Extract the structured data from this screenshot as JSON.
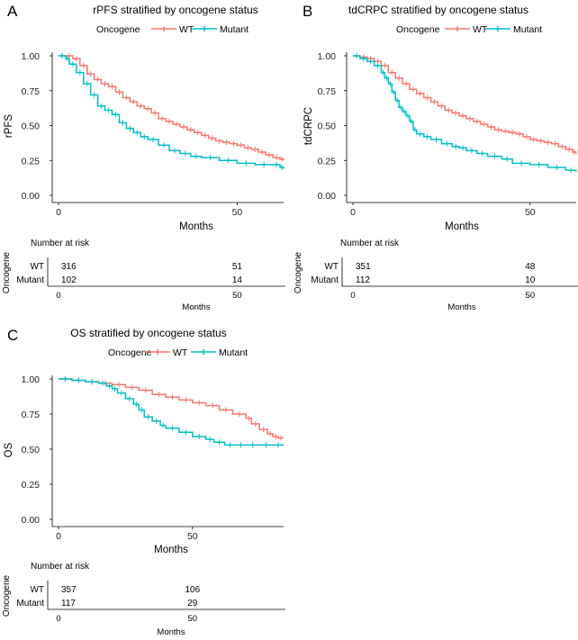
{
  "colors": {
    "wt": "#F8766D",
    "mutant": "#00BFC4"
  },
  "legend_title": "Oncogene",
  "risk_table_title": "Number at risk",
  "risk_ylabel": "Oncogene",
  "chart_data": [
    {
      "type": "line",
      "letter": "A",
      "title": "rPFS stratified by oncogene status",
      "xlabel": "Months",
      "ylabel": "rPFS",
      "xlim": [
        0,
        63
      ],
      "ylim": [
        0,
        1
      ],
      "xticks": [
        0,
        50
      ],
      "yticks": [
        "0.00",
        "0.25",
        "0.50",
        "0.75",
        "1.00"
      ],
      "series": [
        {
          "name": "WT",
          "x": [
            0,
            2,
            4,
            6,
            8,
            10,
            12,
            14,
            16,
            18,
            20,
            22,
            24,
            26,
            28,
            30,
            32,
            34,
            36,
            38,
            40,
            42,
            44,
            46,
            48,
            50,
            52,
            54,
            56,
            58,
            60,
            62,
            63
          ],
          "y": [
            1.0,
            1.0,
            0.98,
            0.93,
            0.87,
            0.83,
            0.8,
            0.78,
            0.74,
            0.7,
            0.67,
            0.64,
            0.62,
            0.59,
            0.55,
            0.53,
            0.51,
            0.49,
            0.47,
            0.45,
            0.43,
            0.41,
            0.39,
            0.38,
            0.37,
            0.36,
            0.34,
            0.33,
            0.31,
            0.29,
            0.27,
            0.26,
            0.25
          ]
        },
        {
          "name": "Mutant",
          "x": [
            0,
            2,
            3,
            5,
            7,
            9,
            11,
            13,
            15,
            17,
            19,
            21,
            23,
            25,
            28,
            31,
            34,
            37,
            40,
            45,
            50,
            55,
            60,
            62,
            63
          ],
          "y": [
            1.0,
            0.98,
            0.94,
            0.88,
            0.8,
            0.72,
            0.64,
            0.61,
            0.58,
            0.52,
            0.48,
            0.45,
            0.42,
            0.4,
            0.36,
            0.32,
            0.3,
            0.28,
            0.27,
            0.25,
            0.23,
            0.22,
            0.22,
            0.2,
            0.19
          ]
        }
      ],
      "risk_table": {
        "times": [
          0,
          50
        ],
        "rows": [
          {
            "label": "WT",
            "counts": [
              316,
              51
            ]
          },
          {
            "label": "Mutant",
            "counts": [
              102,
              14
            ]
          }
        ]
      }
    },
    {
      "type": "line",
      "letter": "B",
      "title": "tdCRPC stratified by oncogene status",
      "xlabel": "Months",
      "ylabel": "tdCRPC",
      "xlim": [
        0,
        63
      ],
      "ylim": [
        0,
        1
      ],
      "xticks": [
        0,
        50
      ],
      "yticks": [
        "0.00",
        "0.25",
        "0.50",
        "0.75",
        "1.00"
      ],
      "series": [
        {
          "name": "WT",
          "x": [
            0,
            2,
            4,
            6,
            8,
            10,
            12,
            14,
            16,
            18,
            20,
            22,
            24,
            26,
            28,
            30,
            32,
            34,
            36,
            38,
            40,
            42,
            44,
            46,
            48,
            50,
            52,
            54,
            56,
            58,
            60,
            62,
            63
          ],
          "y": [
            1.0,
            0.99,
            0.98,
            0.96,
            0.93,
            0.88,
            0.84,
            0.8,
            0.76,
            0.73,
            0.7,
            0.67,
            0.64,
            0.61,
            0.59,
            0.57,
            0.55,
            0.53,
            0.51,
            0.49,
            0.47,
            0.46,
            0.45,
            0.44,
            0.42,
            0.4,
            0.39,
            0.38,
            0.37,
            0.35,
            0.33,
            0.31,
            0.3
          ]
        },
        {
          "name": "Mutant",
          "x": [
            0,
            2,
            4,
            6,
            8,
            9,
            10,
            11,
            12,
            13,
            14,
            15,
            16,
            17,
            18,
            20,
            22,
            25,
            28,
            30,
            32,
            35,
            38,
            42,
            45,
            50,
            55,
            60,
            63
          ],
          "y": [
            1.0,
            0.98,
            0.96,
            0.93,
            0.88,
            0.84,
            0.8,
            0.74,
            0.68,
            0.63,
            0.6,
            0.57,
            0.53,
            0.47,
            0.44,
            0.42,
            0.4,
            0.37,
            0.35,
            0.34,
            0.32,
            0.3,
            0.28,
            0.26,
            0.23,
            0.22,
            0.2,
            0.18,
            0.17
          ]
        }
      ],
      "risk_table": {
        "times": [
          0,
          50
        ],
        "rows": [
          {
            "label": "WT",
            "counts": [
              351,
              48
            ]
          },
          {
            "label": "Mutant",
            "counts": [
              112,
              10
            ]
          }
        ]
      }
    },
    {
      "type": "line",
      "letter": "C",
      "title": "OS stratified by oncogene status",
      "xlabel": "Months",
      "ylabel": "OS",
      "xlim": [
        0,
        84
      ],
      "ylim": [
        0,
        1
      ],
      "xticks": [
        0,
        50
      ],
      "yticks": [
        "0.00",
        "0.25",
        "0.50",
        "0.75",
        "1.00"
      ],
      "series": [
        {
          "name": "WT",
          "x": [
            0,
            5,
            10,
            15,
            20,
            25,
            30,
            35,
            40,
            45,
            50,
            55,
            60,
            65,
            70,
            72,
            75,
            78,
            80,
            82,
            84
          ],
          "y": [
            1.0,
            0.99,
            0.98,
            0.97,
            0.96,
            0.94,
            0.92,
            0.89,
            0.87,
            0.85,
            0.83,
            0.81,
            0.78,
            0.75,
            0.72,
            0.68,
            0.64,
            0.61,
            0.59,
            0.58,
            0.58
          ]
        },
        {
          "name": "Mutant",
          "x": [
            0,
            5,
            10,
            15,
            18,
            20,
            22,
            25,
            28,
            30,
            32,
            35,
            38,
            40,
            45,
            50,
            55,
            58,
            62,
            66,
            70,
            75,
            80,
            84
          ],
          "y": [
            1.0,
            0.99,
            0.98,
            0.97,
            0.95,
            0.93,
            0.9,
            0.86,
            0.82,
            0.78,
            0.73,
            0.7,
            0.67,
            0.65,
            0.62,
            0.59,
            0.57,
            0.55,
            0.53,
            0.53,
            0.53,
            0.53,
            0.53,
            0.53
          ]
        }
      ],
      "risk_table": {
        "times": [
          0,
          50
        ],
        "rows": [
          {
            "label": "WT",
            "counts": [
              357,
              106
            ]
          },
          {
            "label": "Mutant",
            "counts": [
              117,
              29
            ]
          }
        ]
      }
    }
  ]
}
